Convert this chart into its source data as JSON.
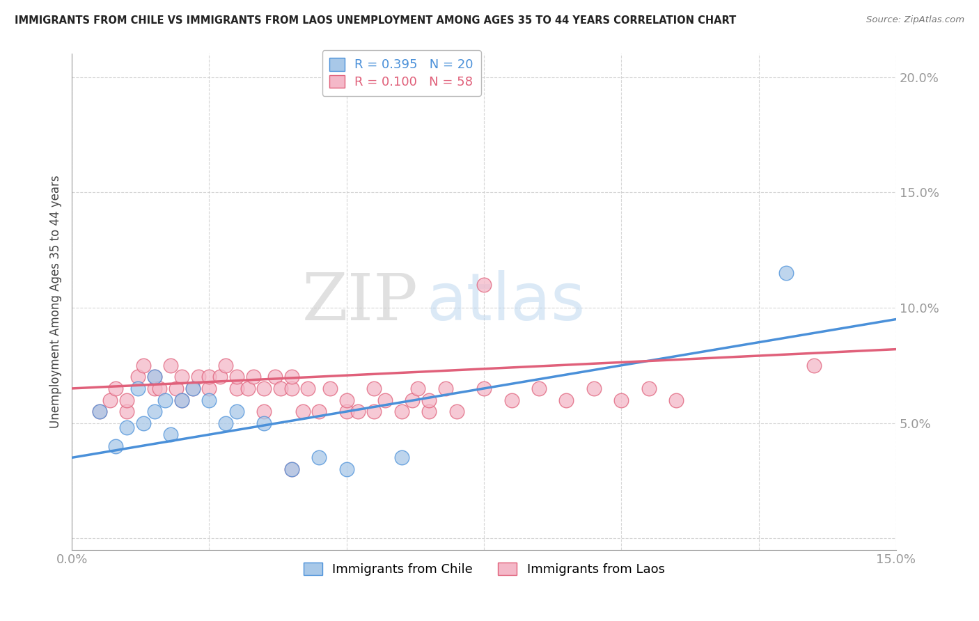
{
  "title": "IMMIGRANTS FROM CHILE VS IMMIGRANTS FROM LAOS UNEMPLOYMENT AMONG AGES 35 TO 44 YEARS CORRELATION CHART",
  "source": "Source: ZipAtlas.com",
  "ylabel": "Unemployment Among Ages 35 to 44 years",
  "xlim": [
    0.0,
    0.15
  ],
  "ylim": [
    -0.005,
    0.21
  ],
  "xticks": [
    0.0,
    0.025,
    0.05,
    0.075,
    0.1,
    0.125,
    0.15
  ],
  "xtick_labels": [
    "0.0%",
    "",
    "",
    "",
    "",
    "",
    "15.0%"
  ],
  "yticks": [
    0.0,
    0.05,
    0.1,
    0.15,
    0.2
  ],
  "ytick_labels": [
    "",
    "5.0%",
    "10.0%",
    "15.0%",
    "20.0%"
  ],
  "chile_R": 0.395,
  "chile_N": 20,
  "laos_R": 0.1,
  "laos_N": 58,
  "chile_color": "#a8c8e8",
  "laos_color": "#f4b8c8",
  "chile_line_color": "#4a90d9",
  "laos_line_color": "#e0607a",
  "tick_label_color": "#4a90d9",
  "background_color": "#ffffff",
  "watermark_zip": "ZIP",
  "watermark_atlas": "atlas",
  "chile_x": [
    0.005,
    0.008,
    0.01,
    0.012,
    0.013,
    0.015,
    0.015,
    0.017,
    0.018,
    0.02,
    0.022,
    0.025,
    0.028,
    0.03,
    0.035,
    0.04,
    0.045,
    0.05,
    0.06,
    0.13
  ],
  "chile_y": [
    0.055,
    0.04,
    0.048,
    0.065,
    0.05,
    0.055,
    0.07,
    0.06,
    0.045,
    0.06,
    0.065,
    0.06,
    0.05,
    0.055,
    0.05,
    0.03,
    0.035,
    0.03,
    0.035,
    0.115
  ],
  "laos_x": [
    0.005,
    0.007,
    0.008,
    0.01,
    0.01,
    0.012,
    0.013,
    0.015,
    0.015,
    0.016,
    0.018,
    0.019,
    0.02,
    0.02,
    0.022,
    0.023,
    0.025,
    0.025,
    0.027,
    0.028,
    0.03,
    0.03,
    0.032,
    0.033,
    0.035,
    0.035,
    0.037,
    0.038,
    0.04,
    0.04,
    0.042,
    0.043,
    0.045,
    0.047,
    0.05,
    0.05,
    0.052,
    0.055,
    0.055,
    0.057,
    0.06,
    0.062,
    0.063,
    0.065,
    0.065,
    0.068,
    0.07,
    0.075,
    0.08,
    0.085,
    0.09,
    0.095,
    0.1,
    0.105,
    0.11,
    0.135,
    0.075,
    0.04
  ],
  "laos_y": [
    0.055,
    0.06,
    0.065,
    0.055,
    0.06,
    0.07,
    0.075,
    0.065,
    0.07,
    0.065,
    0.075,
    0.065,
    0.06,
    0.07,
    0.065,
    0.07,
    0.065,
    0.07,
    0.07,
    0.075,
    0.065,
    0.07,
    0.065,
    0.07,
    0.055,
    0.065,
    0.07,
    0.065,
    0.065,
    0.07,
    0.055,
    0.065,
    0.055,
    0.065,
    0.055,
    0.06,
    0.055,
    0.065,
    0.055,
    0.06,
    0.055,
    0.06,
    0.065,
    0.055,
    0.06,
    0.065,
    0.055,
    0.065,
    0.06,
    0.065,
    0.06,
    0.065,
    0.06,
    0.065,
    0.06,
    0.075,
    0.11,
    0.03
  ]
}
